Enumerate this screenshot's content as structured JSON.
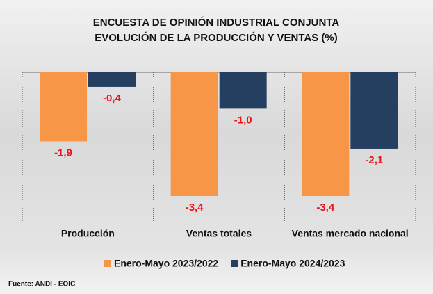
{
  "chart_data": {
    "type": "bar",
    "title": "ENCUESTA DE OPINIÓN INDUSTRIAL CONJUNTA",
    "subtitle": "EVOLUCIÓN DE LA PRODUCCIÓN Y VENTAS (%)",
    "categories": [
      "Producción",
      "Ventas totales",
      "Ventas mercado nacional"
    ],
    "series": [
      {
        "name": "Enero-Mayo 2023/2022",
        "color": "#f79646",
        "values": [
          -1.9,
          -3.4,
          -3.4
        ],
        "value_labels": [
          "-1,9",
          "-3,4",
          "-3,4"
        ]
      },
      {
        "name": "Enero-Mayo 2024/2023",
        "color": "#243f60",
        "values": [
          -0.4,
          -1.0,
          -2.1
        ],
        "value_labels": [
          "-0,4",
          "-1,0",
          "-2,1"
        ]
      }
    ],
    "label_color": "#e8141c",
    "legend": "bottom",
    "source": "Fuente: ANDI - EOIC"
  }
}
